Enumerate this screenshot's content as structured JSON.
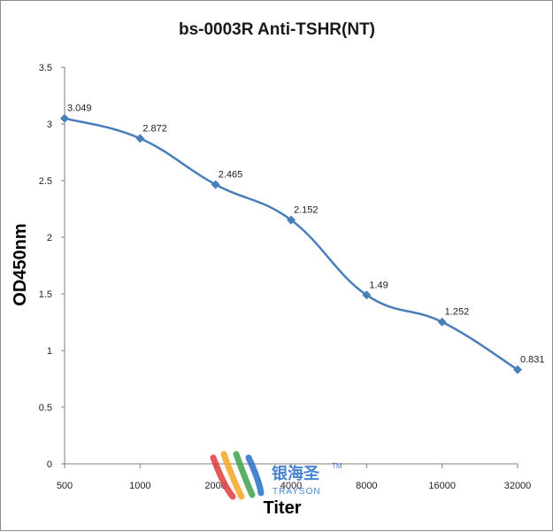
{
  "chart_data": {
    "type": "line",
    "title": "bs-0003R Anti-TSHR(NT)",
    "xlabel": "Titer",
    "ylabel": "OD450nm",
    "categories": [
      "500",
      "1000",
      "2000",
      "4000",
      "8000",
      "16000",
      "32000"
    ],
    "series": [
      {
        "values": [
          3.049,
          2.872,
          2.465,
          2.152,
          1.49,
          1.252,
          0.831
        ]
      }
    ],
    "data_labels": [
      "3.049",
      "2.872",
      "2.465",
      "2.152",
      "1.49",
      "1.252",
      "0.831"
    ],
    "ylim": [
      0,
      3.5
    ],
    "yticks": [
      "0",
      "0.5",
      "1",
      "1.5",
      "2",
      "2.5",
      "3",
      "3.5"
    ],
    "grid": false,
    "legend": "none",
    "line_color": "#4a7ebb"
  },
  "watermark": {
    "text_cn": "银海圣",
    "text_en": "TRAYSON",
    "trademark": "TM",
    "colors": [
      "#e23b3b",
      "#f5a623",
      "#3fa34d",
      "#2a6fc9"
    ]
  }
}
